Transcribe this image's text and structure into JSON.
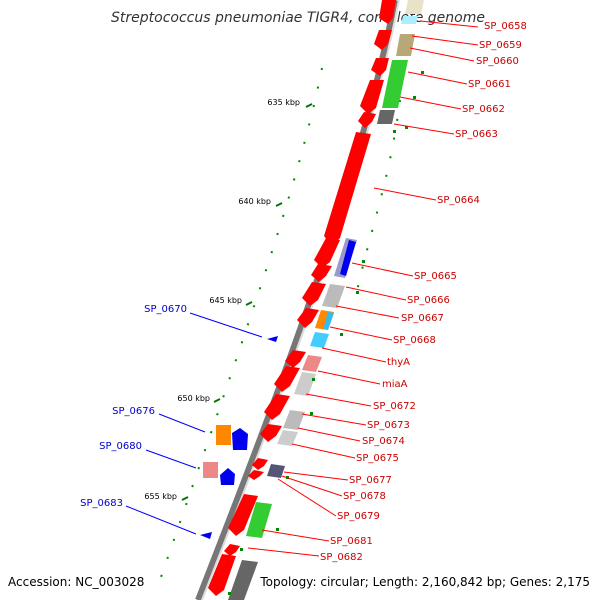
{
  "map": {
    "title": "Streptococcus pneumoniae TIGR4, complete genome",
    "accession": "Accession: NC_003028",
    "topology": "Topology: circular; Length: 2,160,842 bp; Genes: 2,175"
  },
  "ticks": [
    "635 kbp",
    "640 kbp",
    "645 kbp",
    "650 kbp",
    "655 kbp"
  ],
  "right_genes": [
    "SP_0658",
    "SP_0659",
    "SP_0660",
    "SP_0661",
    "SP_0662",
    "SP_0663",
    "SP_0664",
    "SP_0665",
    "SP_0666",
    "SP_0667",
    "SP_0668",
    "thyA",
    "miaA",
    "SP_0672",
    "SP_0673",
    "SP_0674",
    "SP_0675",
    "SP_0677",
    "SP_0678",
    "SP_0679",
    "SP_0681",
    "SP_0682"
  ],
  "left_genes": [
    "SP_0670",
    "SP_0676",
    "SP_0680",
    "SP_0683"
  ],
  "colors": {
    "forward_label": "#cc0000",
    "reverse_label": "#0000cc",
    "cds": "#ff0000",
    "backbone": "#777777",
    "tick": "#007700"
  }
}
